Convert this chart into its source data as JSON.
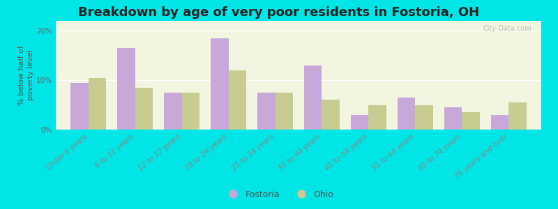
{
  "title": "Breakdown by age of very poor residents in Fostoria, OH",
  "ylabel": "% below half of\npoverty level",
  "categories": [
    "Under 6 years",
    "6 to 11 years",
    "12 to 17 years",
    "18 to 24 years",
    "25 to 34 years",
    "35 to 44 years",
    "45 to 54 years",
    "55 to 64 years",
    "65 to 74 years",
    "75 years and over"
  ],
  "fostoria_values": [
    9.5,
    16.5,
    7.5,
    18.5,
    7.5,
    13.0,
    3.0,
    6.5,
    4.5,
    3.0
  ],
  "ohio_values": [
    10.5,
    8.5,
    7.5,
    12.0,
    7.5,
    6.0,
    5.0,
    5.0,
    3.5,
    5.5
  ],
  "fostoria_color": "#c8a8d8",
  "ohio_color": "#c8cc90",
  "background_outer": "#00e5e5",
  "background_plot": "#f2f5e0",
  "ylim": [
    0,
    22
  ],
  "yticks": [
    0,
    10,
    20
  ],
  "ytick_labels": [
    "0%",
    "10%",
    "20%"
  ],
  "bar_width": 0.38,
  "title_fontsize": 13,
  "axis_label_fontsize": 8,
  "tick_fontsize": 7.5,
  "legend_fontsize": 9,
  "watermark": "City-Data.com"
}
